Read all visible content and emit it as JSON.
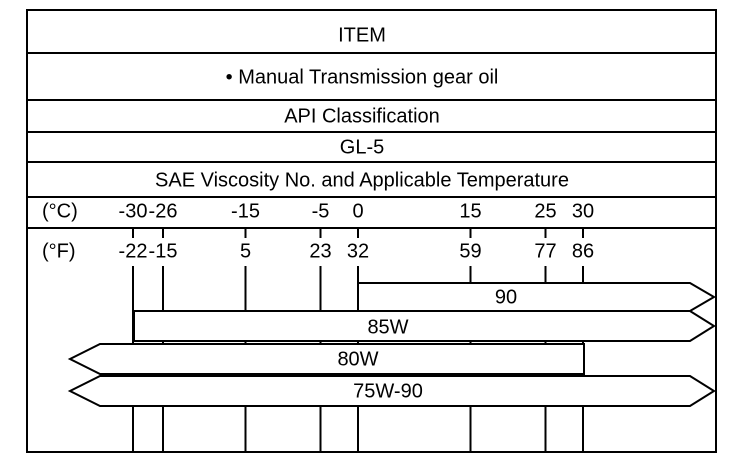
{
  "header": {
    "title": "ITEM"
  },
  "item": "• Manual Transmission gear oil",
  "classification": {
    "label": "API Classification",
    "value": "GL-5"
  },
  "viscosity": {
    "title": "SAE Viscosity No. and Applicable Temperature",
    "celsius_unit": "(°C)",
    "fahrenheit_unit": "(°F)",
    "celsius": [
      -30,
      -26,
      -15,
      -5,
      0,
      15,
      25,
      30
    ],
    "fahrenheit": [
      -22,
      -15,
      5,
      23,
      32,
      59,
      77,
      86
    ],
    "grades": [
      "90",
      "85W",
      "80W",
      "75W-90"
    ]
  }
}
